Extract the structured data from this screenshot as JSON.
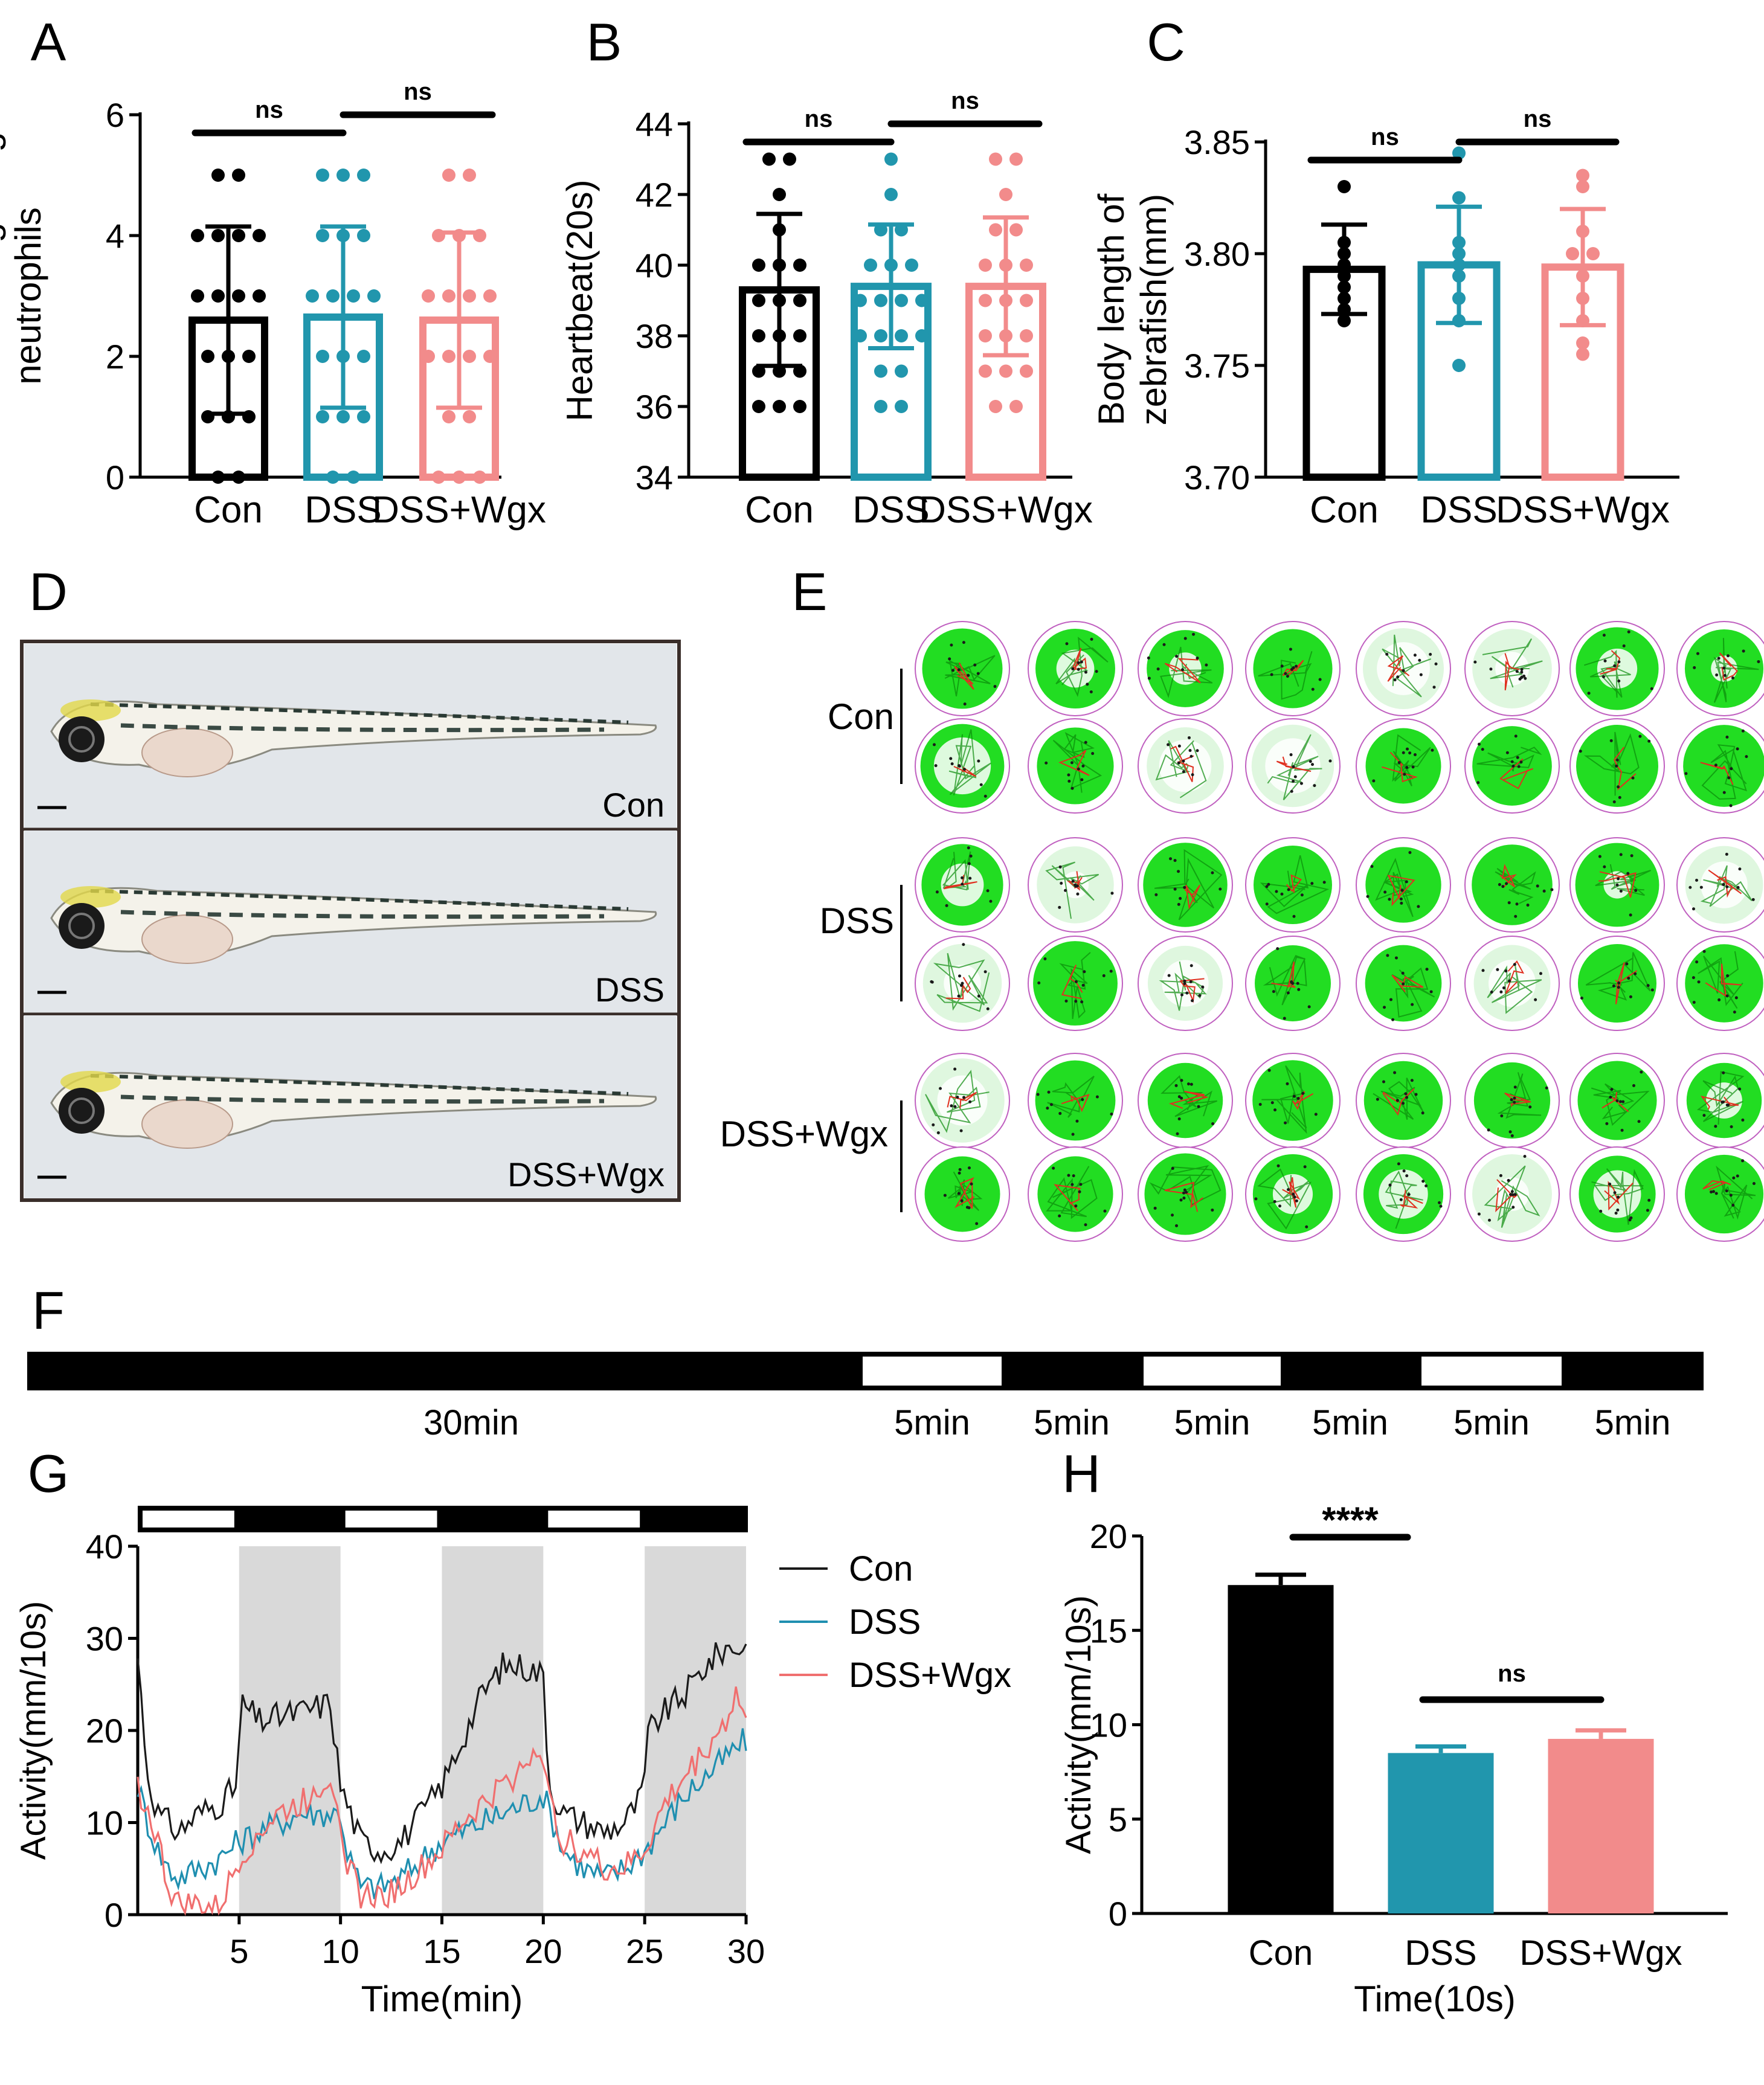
{
  "figure": {
    "panel_letters": [
      "A",
      "B",
      "C",
      "D",
      "E",
      "F",
      "G",
      "H"
    ]
  },
  "colors": {
    "con": "#000000",
    "dss": "#2196ad",
    "wgx": "#f28b8b",
    "con_line": "#1a1a1a",
    "dss_line": "#1f8fb0",
    "wgx_line": "#f06f6f",
    "grey_band": "#d9d9d9",
    "track_green": "#22dd22",
    "ring": "#c060c0"
  },
  "chart_data": [
    {
      "id": "A",
      "type": "bar",
      "categories": [
        "Con",
        "DSS",
        "DSS+Wgx"
      ],
      "means": [
        2.6,
        2.65,
        2.6
      ],
      "sd": [
        1.55,
        1.5,
        1.45
      ],
      "ylabel": "Number of migrating neutrophils",
      "ylabel_lines": [
        "Number of migrating",
        "neutrophils"
      ],
      "ylim": [
        0,
        6
      ],
      "yticks": [
        "0",
        "2",
        "4",
        "6"
      ],
      "points": [
        [
          5,
          5,
          4,
          4,
          4,
          4,
          3,
          3,
          3,
          3,
          2,
          2,
          2,
          1,
          1,
          1,
          0,
          0
        ],
        [
          5,
          5,
          5,
          4,
          4,
          4,
          3,
          3,
          3,
          3,
          2,
          2,
          2,
          1,
          1,
          1,
          0,
          0
        ],
        [
          5,
          5,
          4,
          4,
          4,
          3,
          3,
          3,
          3,
          2,
          2,
          2,
          2,
          1,
          1,
          0,
          0,
          0
        ]
      ],
      "significance": [
        {
          "from": 0,
          "to": 1,
          "label": "ns"
        },
        {
          "from": 1,
          "to": 2,
          "label": "ns"
        }
      ]
    },
    {
      "id": "B",
      "type": "bar",
      "categories": [
        "Con",
        "DSS",
        "DSS+Wgx"
      ],
      "means": [
        39.3,
        39.4,
        39.4
      ],
      "sd": [
        2.15,
        1.75,
        1.95
      ],
      "ylabel": "Heartbeat(20s)",
      "ylabel_lines": [
        "Heartbeat(20s)"
      ],
      "ylim": [
        34,
        44
      ],
      "yticks": [
        "34",
        "36",
        "38",
        "40",
        "42",
        "44"
      ],
      "points": [
        [
          43,
          43,
          42,
          41,
          40,
          40,
          40,
          39,
          39,
          39,
          38,
          38,
          38,
          37,
          37,
          37,
          36,
          36,
          36
        ],
        [
          43,
          42,
          41,
          41,
          40,
          40,
          40,
          39,
          39,
          39,
          39,
          38,
          38,
          38,
          38,
          37,
          37,
          36,
          36
        ],
        [
          43,
          43,
          42,
          41,
          41,
          40,
          40,
          40,
          39,
          39,
          39,
          38,
          38,
          38,
          37,
          37,
          37,
          36,
          36
        ]
      ],
      "significance": [
        {
          "from": 0,
          "to": 1,
          "label": "ns"
        },
        {
          "from": 1,
          "to": 2,
          "label": "ns"
        }
      ]
    },
    {
      "id": "C",
      "type": "bar",
      "categories": [
        "Con",
        "DSS",
        "DSS+Wgx"
      ],
      "means": [
        3.793,
        3.795,
        3.794
      ],
      "sd": [
        0.02,
        0.026,
        0.026
      ],
      "ylabel": "Body length of zebrafish(mm)",
      "ylabel_lines": [
        "Body length of",
        "zebrafish(mm)"
      ],
      "ylim": [
        3.7,
        3.85
      ],
      "yticks": [
        "3.70",
        "3.75",
        "3.80",
        "3.85"
      ],
      "points": [
        [
          3.83,
          3.805,
          3.8,
          3.795,
          3.79,
          3.785,
          3.78,
          3.775,
          3.77
        ],
        [
          3.845,
          3.825,
          3.805,
          3.8,
          3.795,
          3.79,
          3.78,
          3.77,
          3.75
        ],
        [
          3.835,
          3.83,
          3.81,
          3.8,
          3.8,
          3.79,
          3.78,
          3.77,
          3.76,
          3.755
        ]
      ],
      "significance": [
        {
          "from": 0,
          "to": 1,
          "label": "ns"
        },
        {
          "from": 1,
          "to": 2,
          "label": "ns"
        }
      ]
    },
    {
      "id": "G",
      "type": "line",
      "xlabel": "Time(min)",
      "ylabel": "Activity(mm/10s)",
      "xlim": [
        0,
        30
      ],
      "ylim": [
        0,
        40
      ],
      "xticks": [
        "5",
        "10",
        "15",
        "20",
        "25",
        "30"
      ],
      "yticks": [
        "0",
        "10",
        "20",
        "30",
        "40"
      ],
      "light_schedule": [
        {
          "start": 0,
          "end": 5,
          "state": "light"
        },
        {
          "start": 5,
          "end": 10,
          "state": "dark"
        },
        {
          "start": 10,
          "end": 15,
          "state": "light"
        },
        {
          "start": 15,
          "end": 20,
          "state": "dark"
        },
        {
          "start": 20,
          "end": 25,
          "state": "light"
        },
        {
          "start": 25,
          "end": 30,
          "state": "dark"
        }
      ],
      "series": [
        {
          "name": "Con",
          "anchors": [
            [
              0,
              28
            ],
            [
              0.5,
              15
            ],
            [
              1,
              11
            ],
            [
              2,
              9
            ],
            [
              3,
              11
            ],
            [
              4,
              12
            ],
            [
              4.9,
              14
            ],
            [
              5.1,
              23
            ],
            [
              6,
              21
            ],
            [
              8,
              22
            ],
            [
              9.5,
              23
            ],
            [
              10,
              14
            ],
            [
              10.5,
              11
            ],
            [
              11,
              8
            ],
            [
              12,
              7
            ],
            [
              13,
              8
            ],
            [
              14,
              11
            ],
            [
              15,
              14
            ],
            [
              16,
              19
            ],
            [
              17,
              24
            ],
            [
              18,
              27
            ],
            [
              19,
              27
            ],
            [
              20,
              26
            ],
            [
              20.3,
              14
            ],
            [
              21,
              11
            ],
            [
              22,
              10
            ],
            [
              23,
              9
            ],
            [
              24,
              10
            ],
            [
              24.9,
              13
            ],
            [
              25.2,
              20
            ],
            [
              26,
              22
            ],
            [
              27,
              24
            ],
            [
              28,
              27
            ],
            [
              29,
              29
            ],
            [
              30,
              29
            ]
          ]
        },
        {
          "name": "DSS",
          "anchors": [
            [
              0,
              14
            ],
            [
              0.5,
              10
            ],
            [
              1,
              7
            ],
            [
              1.5,
              5
            ],
            [
              2,
              4
            ],
            [
              3,
              5
            ],
            [
              4,
              6
            ],
            [
              5,
              8
            ],
            [
              6,
              9
            ],
            [
              7,
              10
            ],
            [
              8,
              11
            ],
            [
              9,
              11
            ],
            [
              10,
              11
            ],
            [
              10.3,
              7
            ],
            [
              11,
              3
            ],
            [
              12,
              3
            ],
            [
              13,
              4
            ],
            [
              14,
              6
            ],
            [
              15,
              8
            ],
            [
              16,
              9
            ],
            [
              17,
              10
            ],
            [
              18,
              11
            ],
            [
              19,
              12
            ],
            [
              20,
              13
            ],
            [
              20.5,
              10
            ],
            [
              21,
              7
            ],
            [
              22,
              5
            ],
            [
              23,
              4
            ],
            [
              24,
              5
            ],
            [
              25,
              7
            ],
            [
              26,
              10
            ],
            [
              27,
              13
            ],
            [
              28,
              15
            ],
            [
              29,
              17
            ],
            [
              30,
              19
            ]
          ]
        },
        {
          "name": "DSS+Wgx",
          "anchors": [
            [
              0,
              14
            ],
            [
              0.5,
              11
            ],
            [
              1,
              8
            ],
            [
              1.5,
              3
            ],
            [
              2,
              1
            ],
            [
              3,
              1
            ],
            [
              4,
              0.5
            ],
            [
              5,
              6
            ],
            [
              6,
              9
            ],
            [
              7,
              11
            ],
            [
              8,
              12
            ],
            [
              9,
              14
            ],
            [
              9.5,
              15
            ],
            [
              10,
              11
            ],
            [
              10.3,
              6
            ],
            [
              11,
              2
            ],
            [
              12,
              2
            ],
            [
              13,
              3
            ],
            [
              14,
              5
            ],
            [
              15,
              7
            ],
            [
              16,
              10
            ],
            [
              17,
              12
            ],
            [
              18,
              14
            ],
            [
              19,
              16
            ],
            [
              19.8,
              19
            ],
            [
              20.3,
              12
            ],
            [
              21,
              8
            ],
            [
              22,
              7
            ],
            [
              23,
              5
            ],
            [
              24,
              5
            ],
            [
              25,
              7
            ],
            [
              26,
              12
            ],
            [
              27,
              15
            ],
            [
              28,
              18
            ],
            [
              29,
              21
            ],
            [
              29.5,
              24
            ],
            [
              30,
              21
            ]
          ]
        }
      ]
    },
    {
      "id": "H",
      "type": "bar",
      "categories": [
        "Con",
        "DSS",
        "DSS+Wgx"
      ],
      "means": [
        17.4,
        8.5,
        9.25
      ],
      "sem": [
        0.55,
        0.35,
        0.45
      ],
      "xlabel": "Time(10s)",
      "ylabel": "Activity(mm/10s)",
      "ylim": [
        0,
        20
      ],
      "yticks": [
        "0",
        "5",
        "10",
        "15",
        "20"
      ],
      "significance": [
        {
          "from": 0,
          "to": 1,
          "label": "****"
        },
        {
          "from": 1,
          "to": 2,
          "label": "ns"
        }
      ]
    }
  ],
  "panelD": {
    "labels": [
      "Con",
      "DSS",
      "DSS+Wgx"
    ]
  },
  "panelE": {
    "group_labels": [
      "Con",
      "DSS",
      "DSS+Wgx"
    ],
    "wells_per_row": 8,
    "rows_per_group": 2
  },
  "panelF": {
    "segments": [
      {
        "label": "30min",
        "state": "dark",
        "minutes": 30
      },
      {
        "label": "5min",
        "state": "light",
        "minutes": 5
      },
      {
        "label": "5min",
        "state": "dark",
        "minutes": 5
      },
      {
        "label": "5min",
        "state": "light",
        "minutes": 5
      },
      {
        "label": "5min",
        "state": "dark",
        "minutes": 5
      },
      {
        "label": "5min",
        "state": "light",
        "minutes": 5
      },
      {
        "label": "5min",
        "state": "dark",
        "minutes": 5
      }
    ]
  },
  "legendG": [
    "Con",
    "DSS",
    "DSS+Wgx"
  ]
}
